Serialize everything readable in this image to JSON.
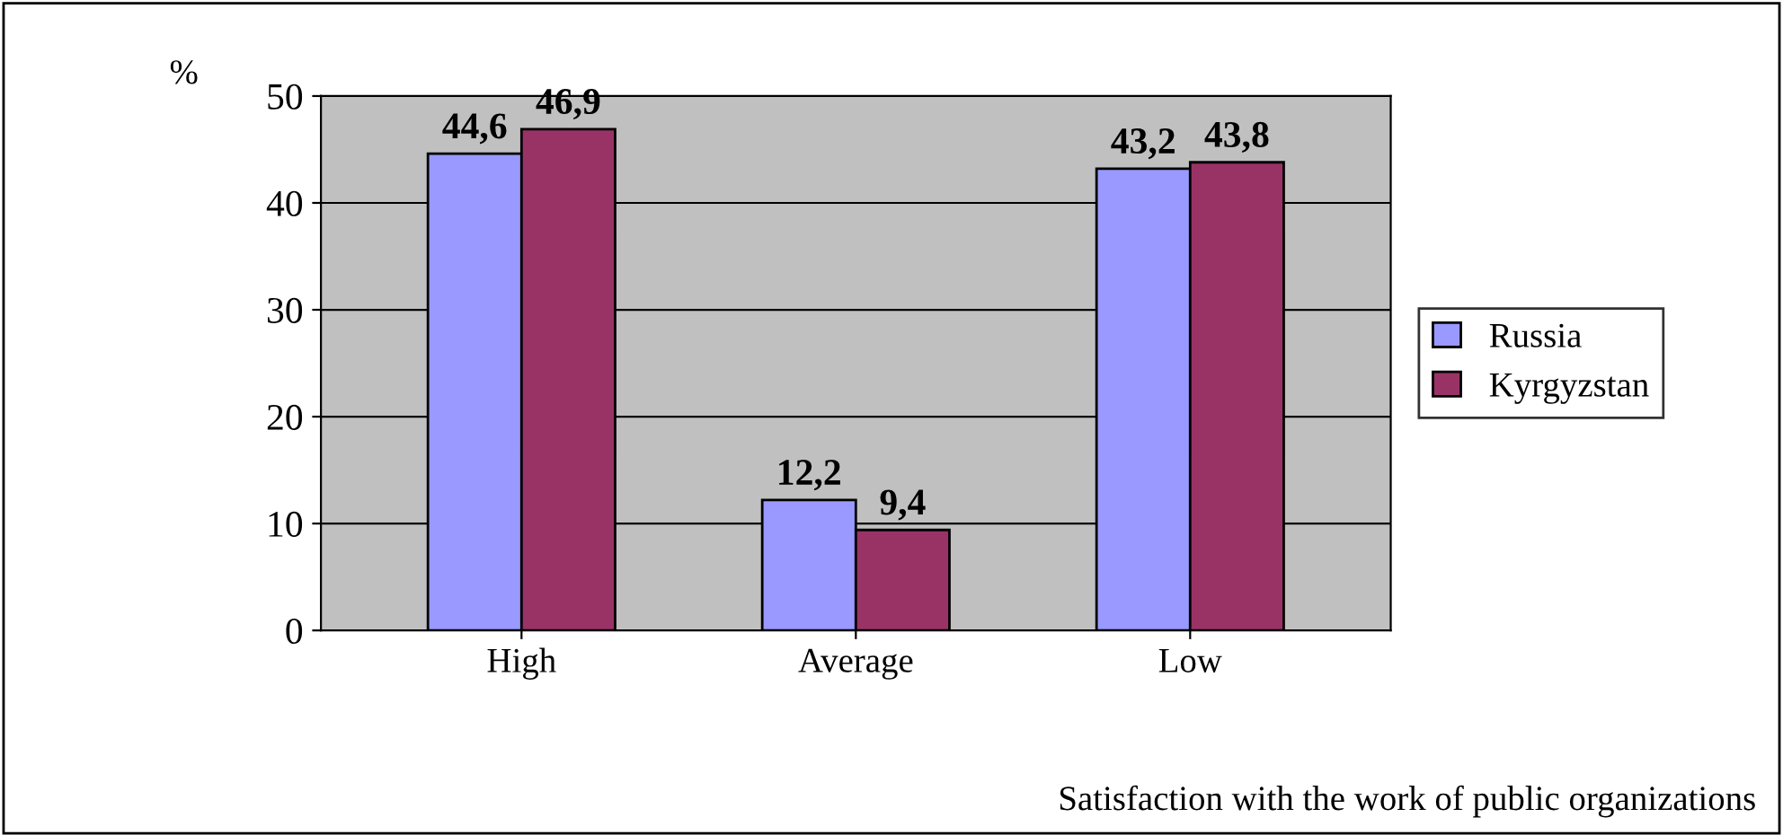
{
  "chart_data": {
    "type": "bar",
    "ylabel": "%",
    "xlabel": "Satisfaction with the work of public organizations",
    "categories": [
      "High",
      "Average",
      "Low"
    ],
    "series": [
      {
        "name": "Russia",
        "color": "#9999ff",
        "values": [
          44.6,
          12.2,
          43.2
        ],
        "value_labels": [
          "44,6",
          "12,2",
          "43,2"
        ]
      },
      {
        "name": "Kyrgyzstan",
        "color": "#993366",
        "values": [
          46.9,
          9.4,
          43.8
        ],
        "value_labels": [
          "46,9",
          "9,4",
          "43,8"
        ]
      }
    ],
    "ylim": [
      0,
      50
    ],
    "yticks": [
      0,
      10,
      20,
      30,
      40,
      50
    ],
    "grid": "y",
    "legend": "right"
  }
}
